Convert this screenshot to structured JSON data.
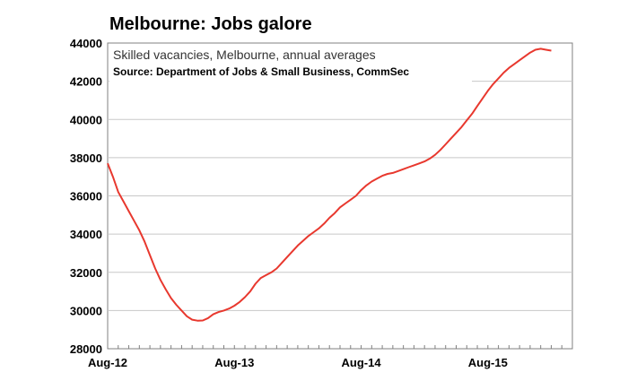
{
  "chart_data": {
    "type": "line",
    "title": "Melbourne: Jobs galore",
    "subtitle": "Skilled vacancies, Melbourne, annual averages",
    "source": "Source: Department of Jobs & Small Business, CommSec",
    "ylim": [
      28000,
      44000
    ],
    "yticks": [
      "44000",
      "42000",
      "40000",
      "38000",
      "36000",
      "34000",
      "32000",
      "30000",
      "28000"
    ],
    "xticks": [
      {
        "label": "Aug-12",
        "month": 0
      },
      {
        "label": "Aug-13",
        "month": 12
      },
      {
        "label": "Aug-14",
        "month": 24
      },
      {
        "label": "Aug-15",
        "month": 36
      }
    ],
    "xlim_months": [
      0,
      44
    ],
    "grid": true,
    "line_color": "#e8382e",
    "series": [
      {
        "points": [
          [
            0,
            37700
          ],
          [
            0.5,
            37000
          ],
          [
            1,
            36200
          ],
          [
            1.5,
            35700
          ],
          [
            2,
            35200
          ],
          [
            2.5,
            34700
          ],
          [
            3,
            34200
          ],
          [
            3.5,
            33600
          ],
          [
            4,
            32900
          ],
          [
            4.5,
            32200
          ],
          [
            5,
            31600
          ],
          [
            5.5,
            31100
          ],
          [
            6,
            30650
          ],
          [
            6.5,
            30300
          ],
          [
            7,
            30000
          ],
          [
            7.5,
            29700
          ],
          [
            8,
            29520
          ],
          [
            8.5,
            29470
          ],
          [
            9,
            29480
          ],
          [
            9.5,
            29600
          ],
          [
            10,
            29800
          ],
          [
            10.5,
            29920
          ],
          [
            11,
            30000
          ],
          [
            11.5,
            30100
          ],
          [
            12,
            30250
          ],
          [
            12.5,
            30450
          ],
          [
            13,
            30700
          ],
          [
            13.5,
            31000
          ],
          [
            14,
            31400
          ],
          [
            14.5,
            31700
          ],
          [
            15,
            31850
          ],
          [
            15.5,
            32000
          ],
          [
            16,
            32200
          ],
          [
            16.5,
            32500
          ],
          [
            17,
            32800
          ],
          [
            17.5,
            33100
          ],
          [
            18,
            33400
          ],
          [
            18.5,
            33650
          ],
          [
            19,
            33900
          ],
          [
            19.5,
            34100
          ],
          [
            20,
            34300
          ],
          [
            20.5,
            34550
          ],
          [
            21,
            34850
          ],
          [
            21.5,
            35100
          ],
          [
            22,
            35400
          ],
          [
            22.5,
            35600
          ],
          [
            23,
            35800
          ],
          [
            23.5,
            36000
          ],
          [
            24,
            36300
          ],
          [
            24.5,
            36550
          ],
          [
            25,
            36750
          ],
          [
            25.5,
            36900
          ],
          [
            26,
            37050
          ],
          [
            26.5,
            37150
          ],
          [
            27,
            37200
          ],
          [
            27.5,
            37300
          ],
          [
            28,
            37400
          ],
          [
            28.5,
            37500
          ],
          [
            29,
            37600
          ],
          [
            29.5,
            37700
          ],
          [
            30,
            37800
          ],
          [
            30.5,
            37950
          ],
          [
            31,
            38150
          ],
          [
            31.5,
            38400
          ],
          [
            32,
            38700
          ],
          [
            32.5,
            39000
          ],
          [
            33,
            39300
          ],
          [
            33.5,
            39600
          ],
          [
            34,
            39950
          ],
          [
            34.5,
            40300
          ],
          [
            35,
            40700
          ],
          [
            35.5,
            41100
          ],
          [
            36,
            41500
          ],
          [
            36.5,
            41850
          ],
          [
            37,
            42150
          ],
          [
            37.5,
            42450
          ],
          [
            38,
            42700
          ],
          [
            38.5,
            42900
          ],
          [
            39,
            43100
          ],
          [
            39.5,
            43300
          ],
          [
            40,
            43500
          ],
          [
            40.5,
            43650
          ],
          [
            41,
            43700
          ],
          [
            41.5,
            43650
          ],
          [
            42,
            43600
          ]
        ]
      }
    ]
  }
}
